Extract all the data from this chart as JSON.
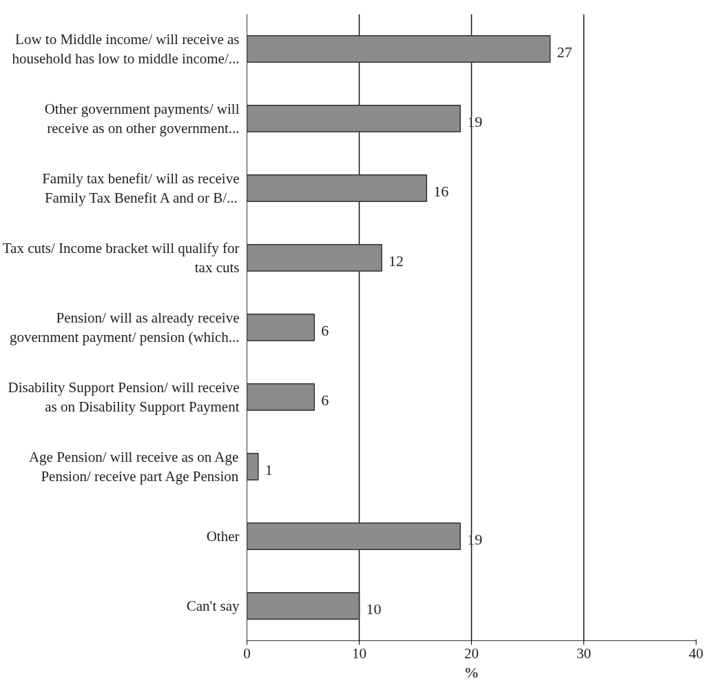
{
  "chart_data": {
    "type": "bar",
    "orientation": "horizontal",
    "xlabel": "%",
    "categories": [
      "Low to Middle income/ will receive as\nhousehold has low to middle income/...",
      "Other government payments/ will\nreceive as on other government...",
      "Family tax benefit/ will as receive\nFamily Tax Benefit A and or B/...",
      "Tax cuts/ Income bracket will qualify for\ntax cuts",
      "Pension/ will as already receive\ngovernment payment/ pension (which...",
      "Disability Support Pension/ will receive\nas on Disability Support Payment",
      "Age Pension/ will receive as on Age\nPension/ receive part Age Pension",
      "Other",
      "Can't say"
    ],
    "values": [
      27,
      19,
      16,
      12,
      6,
      6,
      1,
      19,
      10
    ],
    "color": "#8c8c8c",
    "xlim": [
      0,
      40
    ],
    "xticks": [
      0,
      10,
      20,
      30,
      40
    ],
    "grid": "x",
    "data_labels": true
  }
}
